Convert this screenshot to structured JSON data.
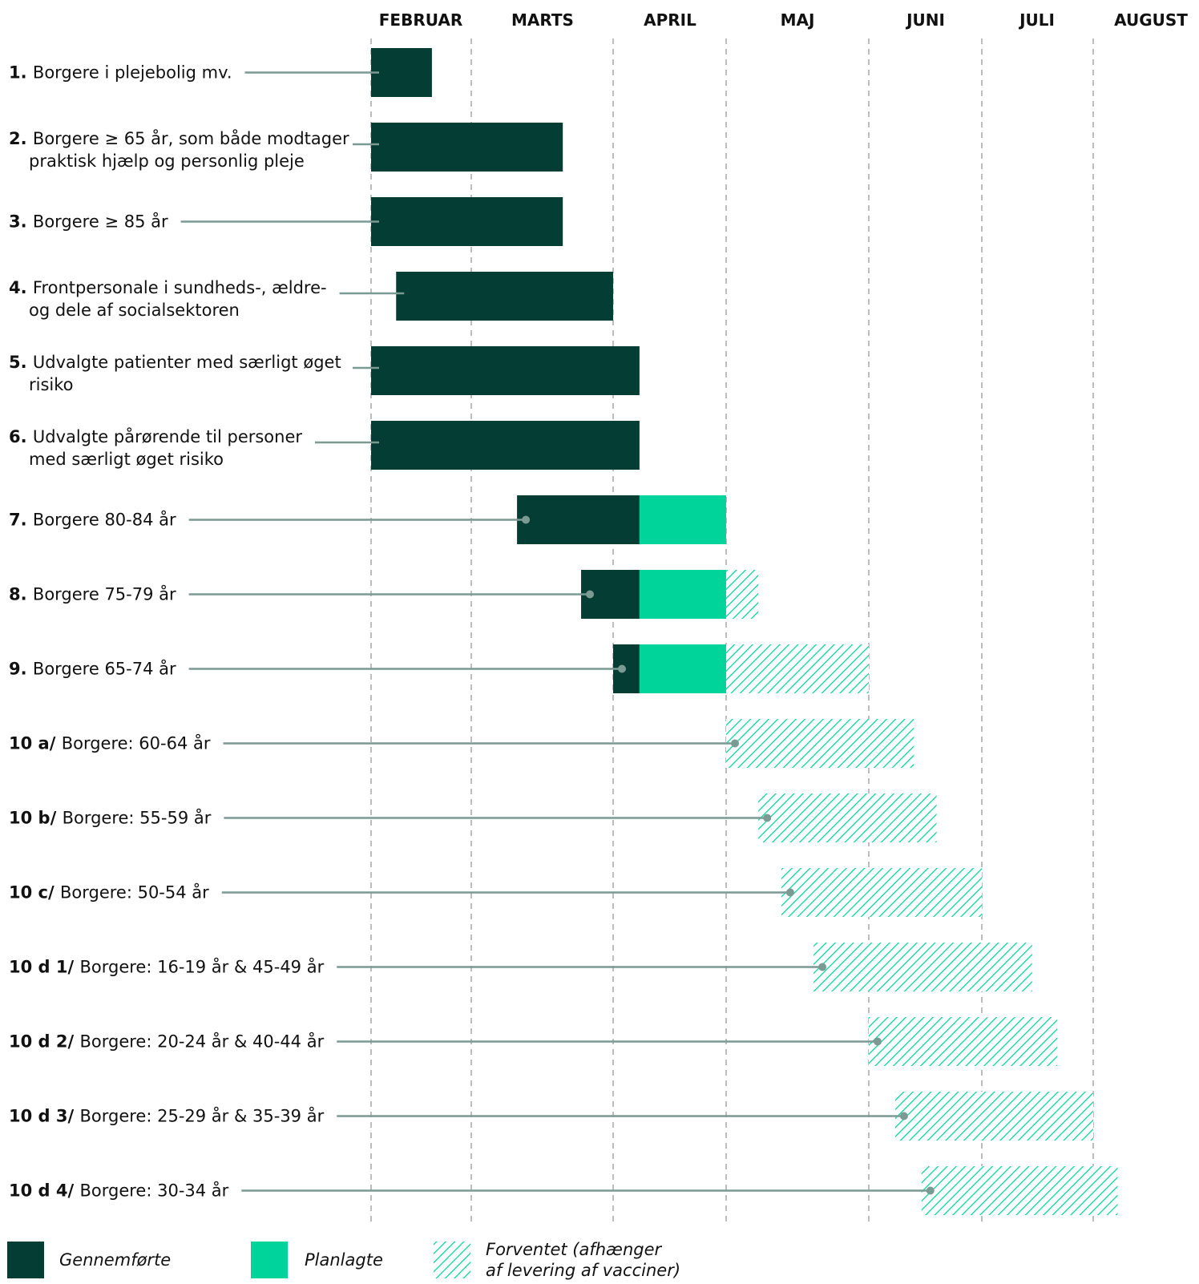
{
  "chart_data": {
    "type": "bar",
    "months": [
      "FEBRUAR",
      "MARTS",
      "APRIL",
      "MAJ",
      "JUNI",
      "JULI",
      "AUGUST"
    ],
    "colors": {
      "done": "#043d33",
      "planned": "#00d49b",
      "expected": "#00d49b",
      "connector": "#7a9a93",
      "grid": "#bdbdbd"
    },
    "rows": [
      {
        "num": "1.",
        "lines": [
          "Borgere i plejebolig mv."
        ],
        "done": [
          "2021-02-01",
          "2021-02-18"
        ],
        "dot": false
      },
      {
        "num": "2.",
        "lines": [
          "Borgere ≥ 65 år, som både modtager",
          "praktisk hjælp og personlig pleje"
        ],
        "done": [
          "2021-02-01",
          "2021-03-21"
        ],
        "dot": false
      },
      {
        "num": "3.",
        "lines": [
          "Borgere ≥ 85 år"
        ],
        "done": [
          "2021-02-01",
          "2021-03-21"
        ],
        "dot": false
      },
      {
        "num": "4.",
        "lines": [
          "Frontpersonale i sundheds-, ældre-",
          "og dele af socialsektoren"
        ],
        "done": [
          "2021-02-08",
          "2021-04-01"
        ],
        "dot": false
      },
      {
        "num": "5.",
        "lines": [
          "Udvalgte patienter med særligt øget",
          "risiko"
        ],
        "done": [
          "2021-02-01",
          "2021-04-08"
        ],
        "dot": false
      },
      {
        "num": "6.",
        "lines": [
          "Udvalgte pårørende til personer",
          "med særligt øget risiko"
        ],
        "done": [
          "2021-02-01",
          "2021-04-08"
        ],
        "dot": false
      },
      {
        "num": "7.",
        "lines": [
          "Borgere 80-84 år"
        ],
        "done": [
          "2021-03-11",
          "2021-04-08"
        ],
        "planned": [
          "2021-04-08",
          "2021-05-01"
        ],
        "dot": true
      },
      {
        "num": "8.",
        "lines": [
          "Borgere 75-79 år"
        ],
        "done": [
          "2021-03-25",
          "2021-04-08"
        ],
        "planned": [
          "2021-04-08",
          "2021-05-01"
        ],
        "expected": [
          "2021-05-01",
          "2021-05-08"
        ],
        "dot": true
      },
      {
        "num": "9.",
        "lines": [
          "Borgere 65-74 år"
        ],
        "done": [
          "2021-04-01",
          "2021-04-08"
        ],
        "planned": [
          "2021-04-08",
          "2021-05-01"
        ],
        "expected": [
          "2021-05-01",
          "2021-06-01"
        ],
        "dot": true
      },
      {
        "num": "10 a/",
        "lines": [
          "Borgere: 60-64 år"
        ],
        "expected": [
          "2021-05-01",
          "2021-06-13"
        ],
        "dot": true
      },
      {
        "num": "10 b/",
        "lines": [
          "Borgere: 55-59 år"
        ],
        "expected": [
          "2021-05-08",
          "2021-06-19"
        ],
        "dot": true
      },
      {
        "num": "10 c/",
        "lines": [
          "Borgere: 50-54 år"
        ],
        "expected": [
          "2021-05-13",
          "2021-07-01"
        ],
        "dot": true
      },
      {
        "num": "10 d 1/",
        "lines": [
          "Borgere: 16-19 år & 45-49 år"
        ],
        "expected": [
          "2021-05-20",
          "2021-07-15"
        ],
        "dot": true
      },
      {
        "num": "10 d 2/",
        "lines": [
          "Borgere: 20-24 år & 40-44 år"
        ],
        "expected": [
          "2021-06-01",
          "2021-07-22"
        ],
        "dot": true
      },
      {
        "num": "10 d 3/",
        "lines": [
          "Borgere: 25-29 år & 35-39 år"
        ],
        "expected": [
          "2021-06-08",
          "2021-08-01"
        ],
        "dot": true
      },
      {
        "num": "10 d 4/",
        "lines": [
          "Borgere: 30-34 år"
        ],
        "expected": [
          "2021-06-15",
          "2021-08-08"
        ],
        "dot": true
      }
    ]
  },
  "legend": {
    "done": "Gennemførte",
    "planned": "Planlagte",
    "expected_line1": "Forventet (afhænger",
    "expected_line2": "af levering af vacciner)"
  }
}
